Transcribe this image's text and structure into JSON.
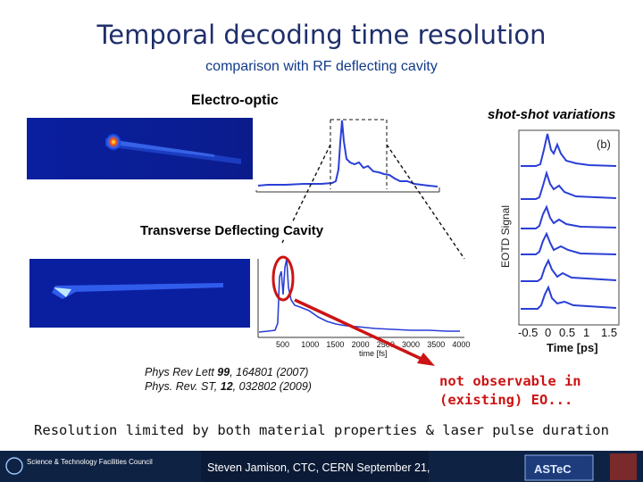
{
  "title": "Temporal decoding time resolution",
  "subtitle": "comparison with RF deflecting cavity",
  "labels": {
    "electro_optic": "Electro-optic",
    "shot_variations": "shot-shot variations",
    "tdc": "Transverse Deflecting Cavity",
    "panel_tag": "(b)",
    "y_axis": "EOTD Signal",
    "time_axis_ps": "Time [ps]",
    "time_axis_fs": "time [fs]"
  },
  "fs_ticks": [
    "500",
    "1000",
    "1500",
    "2000",
    "2500",
    "3000",
    "3500",
    "4000"
  ],
  "ps_ticks": [
    "-0.5",
    "0",
    "0.5",
    "1",
    "1.5"
  ],
  "references": {
    "ref1_prefix": "Phys Rev Lett ",
    "ref1_volume": "99",
    "ref1_rest": ", 164801 (2007)",
    "ref2_prefix": "Phys. Rev. ST, ",
    "ref2_volume": "12",
    "ref2_rest": ",  032802 (2009)"
  },
  "callout": {
    "line1": "not observable in",
    "line2": "(existing) EO..."
  },
  "resolution_note": "Resolution limited by both material properties & laser pulse duration",
  "footer": {
    "org": "Science & Technology Facilities Council",
    "presenter": "Steven Jamison, CTC, CERN September 21,",
    "logo_astec": "ASTeC"
  },
  "colors": {
    "title": "#1f2f6b",
    "trace": "#2a3fd6",
    "annotation": "#cc1414",
    "footer": "#0e2244"
  }
}
